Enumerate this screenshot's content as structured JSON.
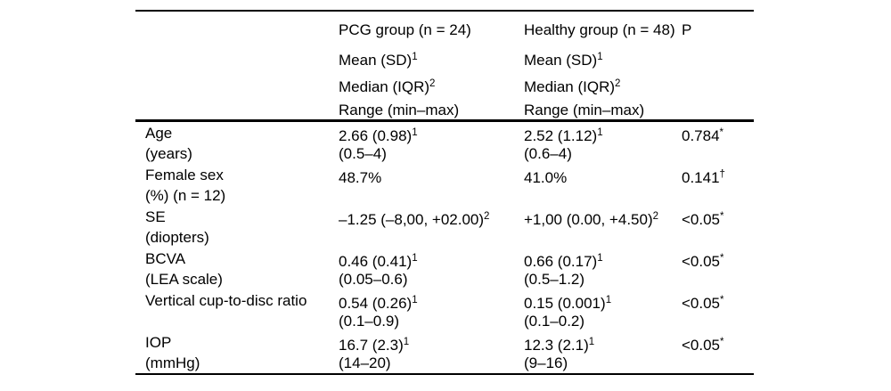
{
  "table": {
    "header": {
      "pcg": {
        "title": "PCG group (n = 24)",
        "mean": "Mean (SD)",
        "mean_sup": "1",
        "median": "Median (IQR)",
        "median_sup": "2",
        "range": "Range (min–max)"
      },
      "healthy": {
        "title": "Healthy group (n = 48)",
        "mean": "Mean (SD)",
        "mean_sup": "1",
        "median": "Median (IQR)",
        "median_sup": "2",
        "range": "Range (min–max)"
      },
      "p": "P"
    },
    "rows": [
      {
        "label_line1": "Age",
        "label_line2": "(years)",
        "pcg_value": "2.66 (0.98)",
        "pcg_sup": "1",
        "pcg_range": "(0.5–4)",
        "healthy_value": "2.52 (1.12)",
        "healthy_sup": "1",
        "healthy_range": "(0.6–4)",
        "p_value": "0.784",
        "p_mark": "*"
      },
      {
        "label_line1": "Female sex",
        "label_line2": "(%) (n = 12)",
        "pcg_value": "48.7%",
        "pcg_sup": "",
        "pcg_range": "",
        "healthy_value": "41.0%",
        "healthy_sup": "",
        "healthy_range": "",
        "p_value": "0.141",
        "p_mark": "†"
      },
      {
        "label_line1": "SE",
        "label_line2": "(diopters)",
        "pcg_value": "–1.25 (–8,00, +02.00)",
        "pcg_sup": "2",
        "pcg_range": "",
        "healthy_value": "+1,00 (0.00, +4.50)",
        "healthy_sup": "2",
        "healthy_range": "",
        "p_value": "<0.05",
        "p_mark": "*"
      },
      {
        "label_line1": "BCVA",
        "label_line2": "(LEA scale)",
        "pcg_value": "0.46 (0.41)",
        "pcg_sup": "1",
        "pcg_range": "(0.05–0.6)",
        "healthy_value": "0.66 (0.17)",
        "healthy_sup": "1",
        "healthy_range": "(0.5–1.2)",
        "p_value": "<0.05",
        "p_mark": "*"
      },
      {
        "label_line1": "Vertical cup-to-disc ratio",
        "label_line2": "",
        "pcg_value": "0.54 (0.26)",
        "pcg_sup": "1",
        "pcg_range": "(0.1–0.9)",
        "healthy_value": "0.15 (0.001)",
        "healthy_sup": "1",
        "healthy_range": "(0.1–0.2)",
        "p_value": "<0.05",
        "p_mark": "*"
      },
      {
        "label_line1": "IOP",
        "label_line2": "(mmHg)",
        "pcg_value": "16.7 (2.3)",
        "pcg_sup": "1",
        "pcg_range": "(14–20)",
        "healthy_value": "12.3 (2.1)",
        "healthy_sup": "1",
        "healthy_range": "(9–16)",
        "p_value": "<0.05",
        "p_mark": "*"
      }
    ]
  }
}
